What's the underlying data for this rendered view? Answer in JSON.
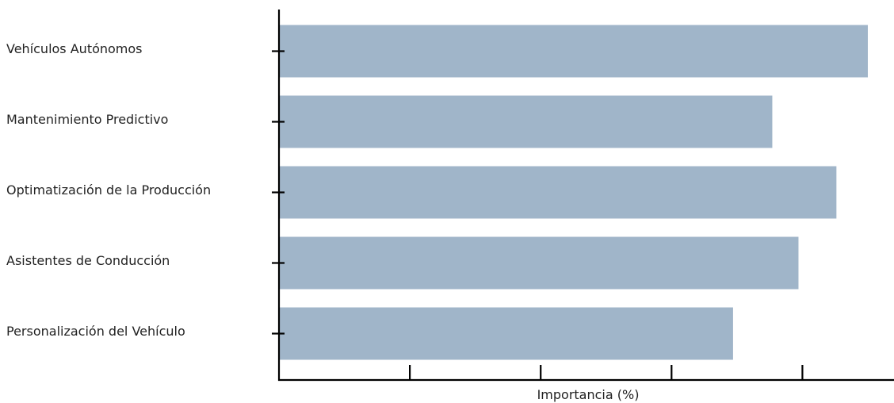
{
  "chart_data": {
    "type": "bar",
    "orientation": "horizontal",
    "categories": [
      "Vehículos Autónomos",
      "Mantenimiento Predictivo",
      "Optimatización de la Producción",
      "Asistentes de Conducción",
      "Personalización del Vehículo"
    ],
    "values": [
      45,
      37.7,
      42.6,
      39.7,
      34.7
    ],
    "xlabel": "Importancia (%)",
    "ylabel": "",
    "xlim": [
      0,
      47
    ],
    "x_ticks": [
      10,
      20,
      30,
      40
    ],
    "x_tick_labels_shown": false,
    "grid": false,
    "bar_color": "#a0b5c9",
    "axis_color": "#000000"
  }
}
